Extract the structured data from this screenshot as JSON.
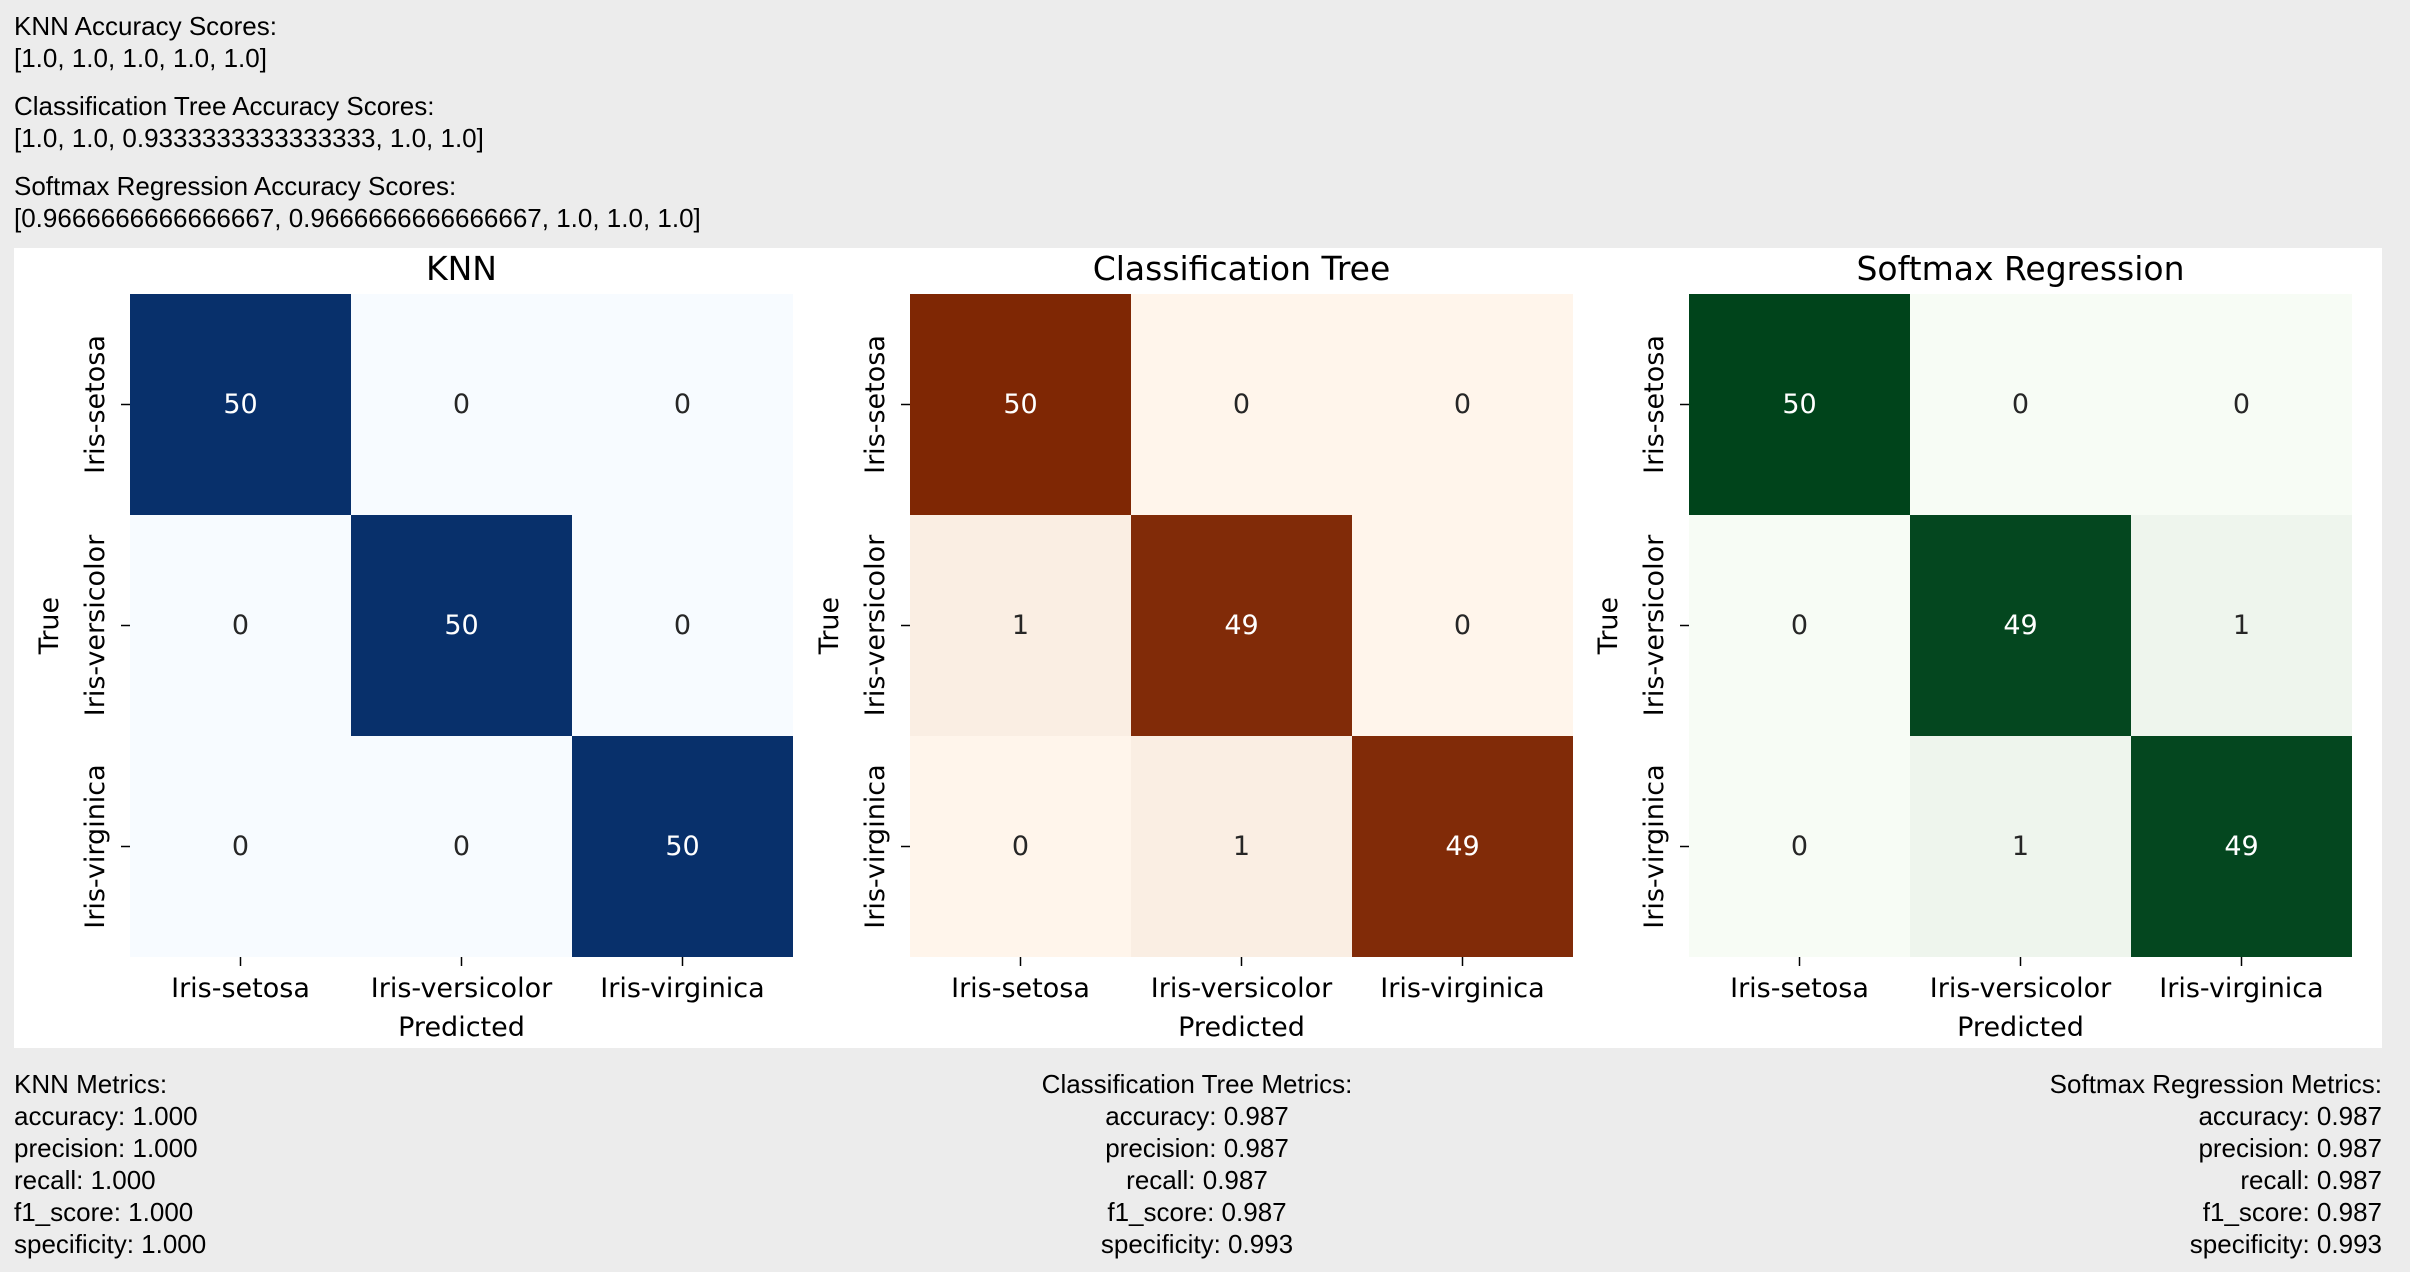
{
  "scores": [
    {
      "label": "KNN Accuracy Scores:",
      "values": "[1.0, 1.0, 1.0, 1.0, 1.0]"
    },
    {
      "label": "Classification Tree Accuracy Scores:",
      "values": "[1.0, 1.0, 0.9333333333333333, 1.0, 1.0]"
    },
    {
      "label": "Softmax Regression Accuracy Scores:",
      "values": "[0.9666666666666667, 0.9666666666666667, 1.0, 1.0, 1.0]"
    }
  ],
  "chart_data": [
    {
      "type": "heatmap",
      "title": "KNN",
      "xlabel": "Predicted",
      "ylabel": "True",
      "x_categories": [
        "Iris-setosa",
        "Iris-versicolor",
        "Iris-virginica"
      ],
      "y_categories": [
        "Iris-setosa",
        "Iris-versicolor",
        "Iris-virginica"
      ],
      "matrix": [
        [
          50,
          0,
          0
        ],
        [
          0,
          50,
          0
        ],
        [
          0,
          0,
          50
        ]
      ],
      "colormap": "Blues",
      "color_low": "#f7fbff",
      "color_high": "#08306b"
    },
    {
      "type": "heatmap",
      "title": "Classification Tree",
      "xlabel": "Predicted",
      "ylabel": "True",
      "x_categories": [
        "Iris-setosa",
        "Iris-versicolor",
        "Iris-virginica"
      ],
      "y_categories": [
        "Iris-setosa",
        "Iris-versicolor",
        "Iris-virginica"
      ],
      "matrix": [
        [
          50,
          0,
          0
        ],
        [
          1,
          49,
          0
        ],
        [
          0,
          1,
          49
        ]
      ],
      "colormap": "Oranges",
      "color_low": "#fff5eb",
      "color_high": "#7f2704"
    },
    {
      "type": "heatmap",
      "title": "Softmax Regression",
      "xlabel": "Predicted",
      "ylabel": "True",
      "x_categories": [
        "Iris-setosa",
        "Iris-versicolor",
        "Iris-virginica"
      ],
      "y_categories": [
        "Iris-setosa",
        "Iris-versicolor",
        "Iris-virginica"
      ],
      "matrix": [
        [
          50,
          0,
          0
        ],
        [
          0,
          49,
          1
        ],
        [
          0,
          1,
          49
        ]
      ],
      "colormap": "Greens",
      "color_low": "#f7fcf5",
      "color_high": "#00441b"
    }
  ],
  "metrics": [
    {
      "title": "KNN Metrics:",
      "lines": [
        "accuracy: 1.000",
        "precision: 1.000",
        "recall: 1.000",
        "f1_score: 1.000",
        "specificity: 1.000"
      ]
    },
    {
      "title": "Classification Tree Metrics:",
      "lines": [
        "accuracy: 0.987",
        "precision: 0.987",
        "recall: 0.987",
        "f1_score: 0.987",
        "specificity: 0.993"
      ]
    },
    {
      "title": "Softmax Regression Metrics:",
      "lines": [
        "accuracy: 0.987",
        "precision: 0.987",
        "recall: 0.987",
        "f1_score: 0.987",
        "specificity: 0.993"
      ]
    }
  ]
}
